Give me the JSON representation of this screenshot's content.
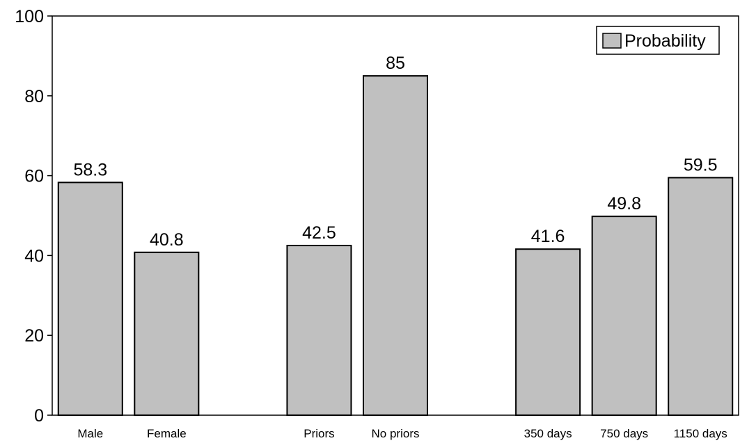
{
  "chart_data": {
    "type": "bar",
    "categories": [
      "Male",
      "Female",
      "",
      "Priors",
      "No priors",
      "",
      "350 days",
      "750 days",
      "1150 days"
    ],
    "series": [
      {
        "name": "Probability",
        "values": [
          58.3,
          40.8,
          null,
          42.5,
          85,
          null,
          41.6,
          49.8,
          59.5
        ]
      }
    ],
    "data_labels": [
      "58.3",
      "40.8",
      "",
      "42.5",
      "85",
      "",
      "41.6",
      "49.8",
      "59.5"
    ],
    "yticks": [
      "0",
      "20",
      "40",
      "60",
      "80",
      "100"
    ],
    "ylim": [
      0,
      100
    ],
    "grid": false,
    "legend_position": "top-right",
    "colors": {
      "bar_fill": "#c0c0c0",
      "bar_stroke": "#000000",
      "axis": "#000000"
    }
  }
}
